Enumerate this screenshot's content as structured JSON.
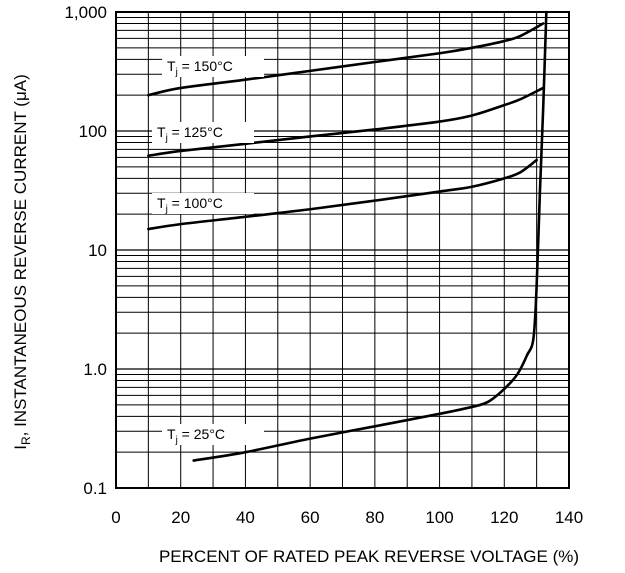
{
  "chart_data": {
    "type": "line",
    "title": "",
    "xlabel": "PERCENT OF RATED PEAK REVERSE VOLTAGE (%)",
    "ylabel_main": "I",
    "ylabel_sub": "R",
    "ylabel_rest": ", INSTANTANEOUS REVERSE CURRENT (μA)",
    "x_scale": "linear",
    "y_scale": "log",
    "xlim": [
      0,
      140
    ],
    "ylim": [
      0.1,
      1000
    ],
    "x_ticks": [
      {
        "value": 0,
        "label": "0"
      },
      {
        "value": 20,
        "label": "20"
      },
      {
        "value": 40,
        "label": "40"
      },
      {
        "value": 60,
        "label": "60"
      },
      {
        "value": 80,
        "label": "80"
      },
      {
        "value": 100,
        "label": "100"
      },
      {
        "value": 120,
        "label": "120"
      },
      {
        "value": 140,
        "label": "140"
      }
    ],
    "y_ticks": [
      {
        "value": 0.1,
        "label": "0.1"
      },
      {
        "value": 1,
        "label": "1.0"
      },
      {
        "value": 10,
        "label": "10"
      },
      {
        "value": 100,
        "label": "100"
      },
      {
        "value": 1000,
        "label": "1,000"
      }
    ],
    "grid": true,
    "series": [
      {
        "annotation": {
          "main": "T",
          "sub": "j",
          "rest": " = 150°C"
        },
        "points": [
          [
            10,
            200
          ],
          [
            20,
            230
          ],
          [
            40,
            270
          ],
          [
            60,
            320
          ],
          [
            80,
            380
          ],
          [
            100,
            450
          ],
          [
            110,
            500
          ],
          [
            120,
            570
          ],
          [
            125,
            630
          ],
          [
            132,
            800
          ]
        ]
      },
      {
        "annotation": {
          "main": "T",
          "sub": "j",
          "rest": " = 125°C"
        },
        "points": [
          [
            10,
            62
          ],
          [
            20,
            68
          ],
          [
            40,
            78
          ],
          [
            60,
            90
          ],
          [
            80,
            103
          ],
          [
            100,
            120
          ],
          [
            110,
            135
          ],
          [
            120,
            165
          ],
          [
            125,
            185
          ],
          [
            132,
            230
          ]
        ]
      },
      {
        "annotation": {
          "main": "T",
          "sub": "j",
          "rest": " = 100°C"
        },
        "points": [
          [
            10,
            15
          ],
          [
            20,
            16.5
          ],
          [
            40,
            19
          ],
          [
            60,
            22
          ],
          [
            80,
            26
          ],
          [
            100,
            31
          ],
          [
            110,
            34
          ],
          [
            120,
            40
          ],
          [
            125,
            45
          ],
          [
            130,
            57
          ]
        ]
      },
      {
        "annotation": {
          "main": "T",
          "sub": "j",
          "rest": " = 25°C"
        },
        "points": [
          [
            24,
            0.17
          ],
          [
            40,
            0.2
          ],
          [
            60,
            0.26
          ],
          [
            80,
            0.33
          ],
          [
            100,
            0.42
          ],
          [
            110,
            0.48
          ],
          [
            115,
            0.53
          ],
          [
            120,
            0.68
          ],
          [
            124,
            0.9
          ],
          [
            127,
            1.3
          ],
          [
            129,
            1.8
          ],
          [
            130,
            5
          ],
          [
            131,
            30
          ],
          [
            132,
            150
          ],
          [
            133,
            1000
          ]
        ]
      }
    ]
  }
}
